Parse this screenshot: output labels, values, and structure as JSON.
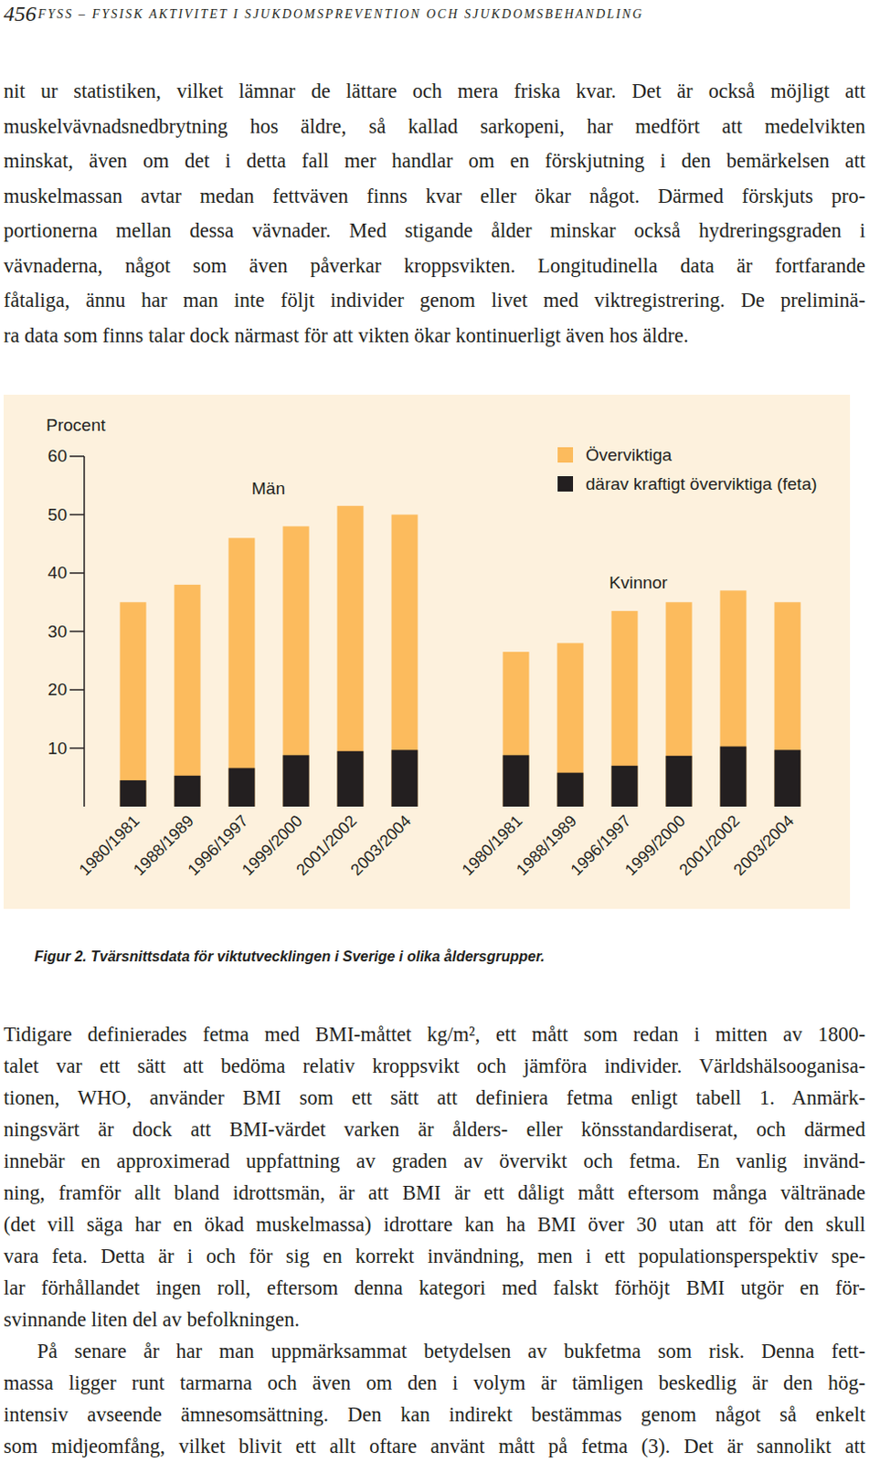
{
  "header": {
    "page_number": "456",
    "title": "FYSS – FYSISK AKTIVITET I SJUKDOMSPREVENTION OCH SJUKDOMSBEHANDLING"
  },
  "text_above": {
    "lines": [
      "nit ur statistiken, vilket lämnar de lättare och mera friska kvar. Det är också möjligt att",
      "muskelvävnadsnedbrytning hos äldre, så kallad sarkopeni, har medfört att medelvikten",
      "minskat, även om det i detta fall mer handlar om en förskjutning i den bemärkelsen att",
      "muskelmassan avtar medan fettväven finns kvar eller ökar något. Därmed förskjuts pro-",
      "portionerna mellan dessa vävnader. Med stigande ålder minskar också hydreringsgraden i",
      "vävnaderna, något som även påverkar kroppsvikten. Longitudinella data är fortfarande",
      "fåtaliga, ännu har man inte följt individer genom livet med viktregistrering. De preliminä-",
      "ra data som finns talar dock närmast för att vikten ökar kontinuerligt även hos äldre."
    ]
  },
  "chart_data": {
    "type": "bar",
    "y_label": "Procent",
    "categories": [
      "1980/1981",
      "1988/1989",
      "1996/1997",
      "1999/2000",
      "2001/2002",
      "2003/2004",
      "1980/1981",
      "1988/1989",
      "1996/1997",
      "1999/2000",
      "2001/2002",
      "2003/2004"
    ],
    "annotations": [
      "Män",
      "Kvinnor"
    ],
    "series": [
      {
        "name": "Överviktiga",
        "color": "#fcbb5d",
        "values": [
          35,
          38,
          46,
          48,
          51.5,
          50,
          26.5,
          28,
          33.5,
          35,
          37,
          35
        ]
      },
      {
        "name": "därav kraftigt överviktiga (feta)",
        "color": "#231f20",
        "values": [
          4.5,
          5.3,
          6.6,
          8.8,
          9.5,
          9.7,
          8.8,
          5.8,
          7,
          8.7,
          10.3,
          9.7
        ]
      }
    ],
    "stacked": false,
    "ylim": [
      0,
      60
    ],
    "yticks": [
      10,
      20,
      30,
      40,
      50,
      60
    ],
    "grid": false,
    "legend": "top-right"
  },
  "caption": "Figur 2. Tvärsnittsdata för viktutvecklingen i Sverige i olika åldersgrupper.",
  "text_below": {
    "paragraphs": [
      {
        "lines": [
          "Tidigare definierades fetma med BMI-måttet kg/m², ett mått som redan i mitten av 1800-",
          "talet var ett sätt att bedöma relativ kroppsvikt och jämföra individer. Världshälsooganisa-",
          "tionen, WHO, använder BMI som ett sätt att definiera fetma enligt tabell 1. Anmärk-",
          "ningsvärt är dock att BMI-värdet varken är ålders- eller könsstandardiserat, och därmed",
          "innebär en approximerad uppfattning av graden av övervikt och fetma. En vanlig invänd-",
          "ning, framför allt bland idrottsmän, är att BMI är ett dåligt mått eftersom många vältränade",
          "(det vill säga har en ökad muskelmassa) idrottare kan ha BMI över 30 utan att för den skull",
          "vara feta. Detta är i och för sig en korrekt invändning, men i ett populationsperspektiv spe-",
          "lar förhållandet ingen roll, eftersom denna kategori med falskt förhöjt BMI utgör en för-",
          "svinnande liten del av befolkningen."
        ]
      },
      {
        "lines": [
          "På senare år har man uppmärksammat betydelsen av bukfetma som risk. Denna fett-",
          "massa ligger runt tarmarna och även om den i volym är tämligen beskedlig är den hög-",
          "intensiv avseende ämnesomsättning. Den kan indirekt bestämmas genom något så enkelt",
          "som midjeomfång, vilket blivit ett allt oftare använt mått på fetma (3). Det är sannolikt att"
        ]
      }
    ]
  }
}
